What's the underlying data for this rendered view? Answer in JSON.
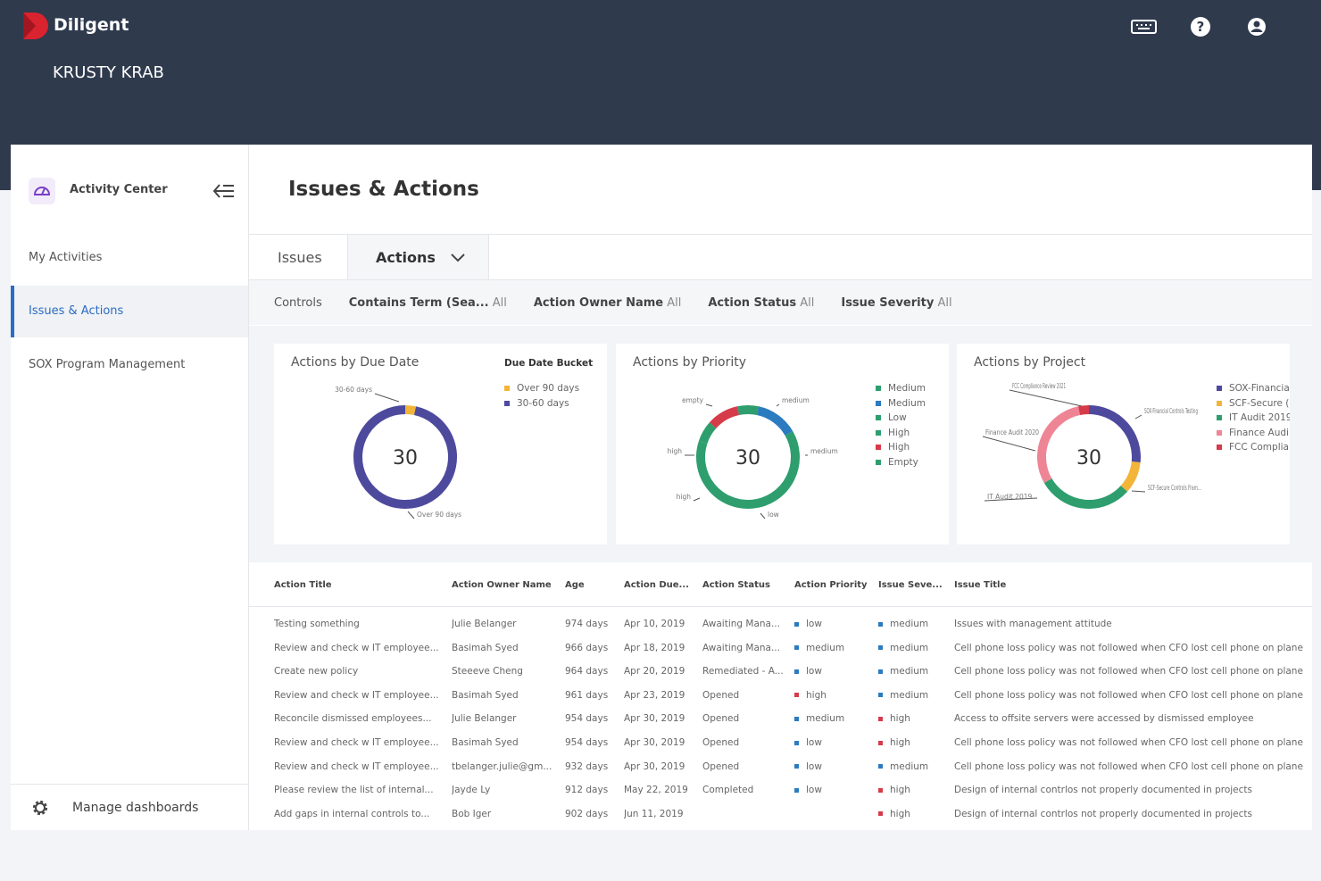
{
  "header": {
    "brand": "Diligent",
    "organization": "KRUSTY KRAB"
  },
  "sidebar": {
    "title": "Activity Center",
    "items": [
      "My Activities",
      "Issues & Actions",
      "SOX Program Management"
    ],
    "active": 1,
    "footer": "Manage dashboards"
  },
  "page": {
    "title": "Issues & Actions",
    "tabs": [
      "Issues",
      "Actions"
    ],
    "active_tab": 1
  },
  "filters": [
    {
      "label": "Controls"
    },
    {
      "label": "Contains Term (Sea...",
      "value": "All"
    },
    {
      "label": "Action Owner Name",
      "value": "All"
    },
    {
      "label": "Action Status",
      "value": "All"
    },
    {
      "label": "Issue Severity",
      "value": "All"
    }
  ],
  "charts": [
    {
      "type": "donut",
      "title": "Actions by Due Date",
      "legend_title": "Due Date Bucket",
      "total": 30,
      "segments": [
        {
          "name": "Over 90 days",
          "color": "#f2b53a",
          "value": 1
        },
        {
          "name": "30-60 days",
          "color": "#4d4a9e",
          "value": 29
        }
      ],
      "callouts": [
        "30-60 days",
        "Over 90 days"
      ]
    },
    {
      "type": "donut",
      "title": "Actions by Priority",
      "total": 30,
      "segments": [
        {
          "name": "Medium",
          "color": "#2e9e6e",
          "value": 1
        },
        {
          "name": "Medium",
          "color": "#2b7bc0",
          "value": 4
        },
        {
          "name": "Low",
          "color": "#2e9e6e",
          "value": 19
        },
        {
          "name": "High",
          "color": "#2e9e6e",
          "value": 2
        },
        {
          "name": "High",
          "color": "#d63b4a",
          "value": 3
        },
        {
          "name": "Empty",
          "color": "#2e9e6e",
          "value": 1
        }
      ],
      "callouts": [
        "empty",
        "medium",
        "high",
        "medium",
        "high",
        "low"
      ]
    },
    {
      "type": "donut",
      "title": "Actions by Project",
      "total": 30,
      "segments": [
        {
          "name": "SOX-Financia",
          "color": "#4d4a9e",
          "value": 8
        },
        {
          "name": "SCF-Secure (",
          "color": "#f2b53a",
          "value": 3
        },
        {
          "name": "IT Audit 2019",
          "color": "#2e9e6e",
          "value": 9
        },
        {
          "name": "Finance Audi",
          "color": "#ee8595",
          "value": 9
        },
        {
          "name": "FCC Complia",
          "color": "#d63b4a",
          "value": 1
        }
      ],
      "callouts": [
        "FCC Compliance Review 2021",
        "SOX-Financial Controls Testing",
        "Finance Audit 2020",
        "SCF-Secure Controls Fram...",
        "IT Audit 2019"
      ]
    }
  ],
  "table": {
    "columns": [
      "Action Title",
      "Action Owner Name",
      "Age",
      "Action Due...",
      "Action Status",
      "Action Priority",
      "Issue Seve...",
      "Issue Title"
    ],
    "marker_colors": {
      "low": "#2b7bc0",
      "medium": "#2b7bc0",
      "high": "#d63b4a"
    },
    "rows": [
      [
        "Testing something",
        "Julie Belanger",
        "974 days",
        "Apr 10, 2019",
        "Awaiting Mana...",
        "low",
        "medium",
        "Issues with management attitude"
      ],
      [
        "Review and check w IT employee...",
        "Basimah Syed",
        "966 days",
        "Apr 18, 2019",
        "Awaiting Mana...",
        "medium",
        "medium",
        "Cell phone loss policy was not followed when CFO lost cell phone on plane"
      ],
      [
        "Create new policy",
        "Steeeve Cheng",
        "964 days",
        "Apr 20, 2019",
        "Remediated - A...",
        "low",
        "medium",
        "Cell phone loss policy was not followed when CFO lost cell phone on plane"
      ],
      [
        "Review and check w IT employee...",
        "Basimah Syed",
        "961 days",
        "Apr 23, 2019",
        "Opened",
        "high",
        "medium",
        "Cell phone loss policy was not followed when CFO lost cell phone on plane"
      ],
      [
        "Reconcile dismissed employees...",
        "Julie Belanger",
        "954 days",
        "Apr 30, 2019",
        "Opened",
        "medium",
        "high",
        "Access to offsite servers were accessed by dismissed employee"
      ],
      [
        "Review and check w IT employee...",
        "Basimah Syed",
        "954 days",
        "Apr 30, 2019",
        "Opened",
        "low",
        "high",
        "Cell phone loss policy was not followed when CFO lost cell phone on plane"
      ],
      [
        "Review and check w IT employee...",
        "tbelanger.julie@gm...",
        "932 days",
        "Apr 30, 2019",
        "Opened",
        "low",
        "medium",
        "Cell phone loss policy was not followed when CFO lost cell phone on plane"
      ],
      [
        "Please review the list of internal...",
        "Jayde Ly",
        "912 days",
        "May 22, 2019",
        "Completed",
        "low",
        "high",
        "Design of internal contrlos not properly documented in projects"
      ],
      [
        "Add gaps in internal controls to...",
        "Bob Iger",
        "902 days",
        "Jun 11, 2019",
        null,
        null,
        "high",
        "Design of internal contrlos not properly documented in projects"
      ]
    ]
  }
}
